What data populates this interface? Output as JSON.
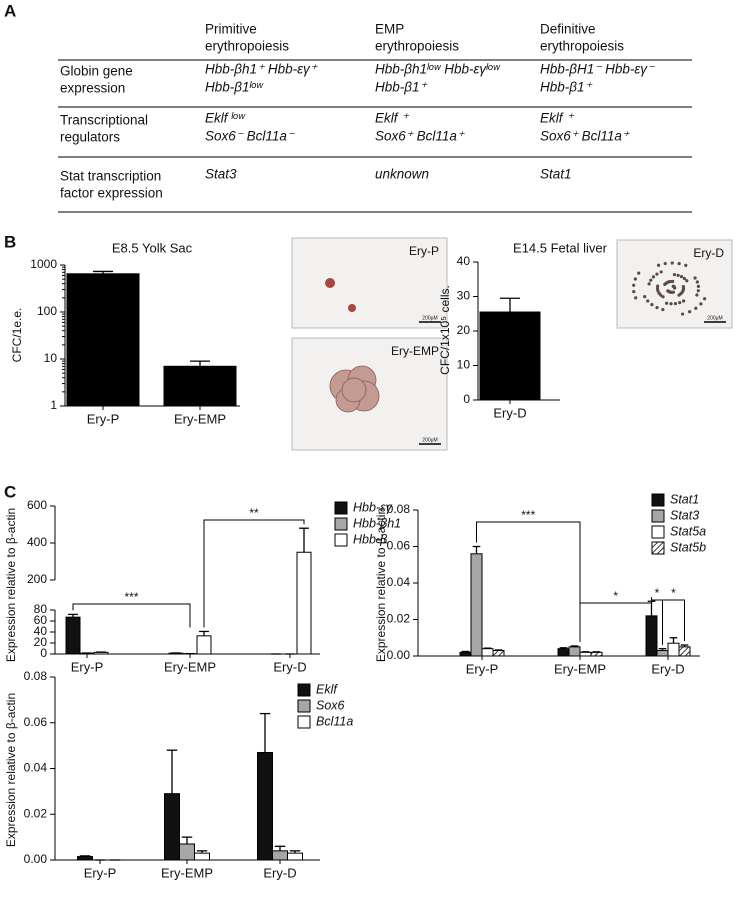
{
  "panel_labels": [
    "A",
    "B",
    "C"
  ],
  "table": {
    "header": [
      [
        "Primitive",
        "erythropoiesis"
      ],
      [
        "EMP",
        "erythropoiesis"
      ],
      [
        "Definitive",
        "erythropoiesis"
      ]
    ],
    "rows": [
      {
        "label": [
          "Globin gene",
          "expression"
        ],
        "cells": [
          [
            "Hbb-βh1⁺ Hbb-εγ⁺",
            "Hbb-β1ˡᵒʷ"
          ],
          [
            "Hbb-βh1ˡᵒʷ Hbb-εγˡᵒʷ",
            "Hbb-β1⁺"
          ],
          [
            "Hbb-βH1⁻ Hbb-εγ⁻",
            "Hbb-β1⁺"
          ]
        ]
      },
      {
        "label": [
          "Transcriptional",
          "regulators"
        ],
        "cells": [
          [
            "Eklf ˡᵒʷ",
            "Sox6⁻ Bcl11a⁻"
          ],
          [
            "Eklf ⁺",
            "Sox6⁺ Bcl11a⁺"
          ],
          [
            "Eklf ⁺",
            "Sox6⁺ Bcl11a⁺"
          ]
        ]
      },
      {
        "label": [
          "Stat transcription",
          "factor expression"
        ],
        "cells": [
          [
            "Stat3"
          ],
          [
            "unknown"
          ],
          [
            "Stat1"
          ]
        ]
      }
    ]
  },
  "images": [
    {
      "label": "Ery-P",
      "scale": "200μM"
    },
    {
      "label": "Ery-EMP",
      "scale": "200μM"
    },
    {
      "label": "Ery-D",
      "scale": "200μM"
    }
  ],
  "chart_data": [
    {
      "type": "bar",
      "title": "E8.5 Yolk Sac",
      "y_label": "CFC/1e.e.",
      "log_scale": true,
      "categories": [
        "Ery-P",
        "Ery-EMP"
      ],
      "values": [
        650,
        7
      ],
      "errors": [
        80,
        2
      ],
      "color": "#000000",
      "ylim": [
        1,
        1000
      ],
      "yticks": [
        1,
        10,
        100,
        1000
      ]
    },
    {
      "type": "bar",
      "title": "E14.5 Fetal liver",
      "y_label": "CFC/1x10⁵ cells.",
      "categories": [
        "Ery-D"
      ],
      "values": [
        25.5
      ],
      "errors": [
        4
      ],
      "color": "#000000",
      "ylim": [
        0,
        40
      ],
      "yticks": [
        0,
        10,
        20,
        30,
        40
      ]
    },
    {
      "type": "bar",
      "y_label": "Expression relative to β-actin",
      "categories": [
        "Ery-P",
        "Ery-EMP",
        "Ery-D"
      ],
      "series": [
        {
          "name": "Hbb-εγ",
          "color": "#111111",
          "values": [
            67,
            1.5,
            0
          ],
          "errors": [
            5,
            0.3,
            0
          ]
        },
        {
          "name": "Hbb-βh1",
          "color": "#a6a6a6",
          "values": [
            1.5,
            0.5,
            0
          ],
          "errors": [
            0.3,
            0.2,
            0
          ]
        },
        {
          "name": "Hbb-β",
          "color": "#ffffff",
          "values": [
            3,
            33,
            350
          ],
          "errors": [
            0.5,
            8,
            130
          ]
        }
      ],
      "ylim": [
        0,
        600
      ],
      "y_break": [
        80,
        200
      ],
      "yticks": [
        0,
        20,
        40,
        60,
        80,
        200,
        400,
        600
      ],
      "annotations": [
        {
          "text": "***",
          "from": [
            "Ery-P",
            "Hbb-εγ"
          ],
          "to": [
            "Ery-EMP",
            null
          ]
        },
        {
          "text": "**",
          "from": [
            "Ery-EMP",
            "Hbb-β"
          ],
          "to": [
            "Ery-D",
            "Hbb-β"
          ]
        }
      ]
    },
    {
      "type": "bar",
      "y_label": "Expression relative to β-actin",
      "categories": [
        "Ery-P",
        "Ery-EMP",
        "Ery-D"
      ],
      "series": [
        {
          "name": "Stat1",
          "color": "#111111",
          "values": [
            0.002,
            0.004,
            0.022
          ],
          "errors": [
            0.0005,
            0.0005,
            0.008
          ]
        },
        {
          "name": "Stat3",
          "color": "#a6a6a6",
          "values": [
            0.056,
            0.005,
            0.003
          ],
          "errors": [
            0.004,
            0.0005,
            0.001
          ]
        },
        {
          "name": "Stat5a",
          "color": "#ffffff",
          "values": [
            0.004,
            0.002,
            0.007
          ],
          "errors": [
            0.0003,
            0.0003,
            0.003
          ]
        },
        {
          "name": "Stat5b",
          "color": "#ffffff",
          "pattern": "hatch",
          "values": [
            0.003,
            0.002,
            0.005
          ],
          "errors": [
            0.0003,
            0.0003,
            0.001
          ]
        }
      ],
      "ylim": [
        0,
        0.08
      ],
      "yticks": [
        {
          "value": 0,
          "label": "0.00"
        },
        0.02,
        0.04,
        0.06,
        0.08
      ],
      "annotations": [
        {
          "text": "***",
          "from": [
            "Ery-P",
            "Stat3"
          ],
          "to": [
            "Ery-EMP",
            null
          ]
        },
        {
          "text": "*",
          "from": [
            "Ery-EMP",
            null
          ],
          "to": [
            "Ery-D",
            "Stat1"
          ]
        },
        {
          "text": "*",
          "from": [
            "Ery-D",
            "Stat1"
          ],
          "to": [
            "Ery-D",
            "Stat3"
          ]
        },
        {
          "text": "*",
          "from": [
            "Ery-D",
            "Stat3"
          ],
          "to": [
            "Ery-D",
            "Stat5b"
          ]
        }
      ]
    },
    {
      "type": "bar",
      "y_label": "Expression relative to β-actin",
      "categories": [
        "Ery-P",
        "Ery-EMP",
        "Ery-D"
      ],
      "series": [
        {
          "name": "Eklf",
          "color": "#111111",
          "values": [
            0.0015,
            0.029,
            0.047
          ],
          "errors": [
            0.0003,
            0.019,
            0.017
          ]
        },
        {
          "name": "Sox6",
          "color": "#a6a6a6",
          "values": [
            0,
            0.007,
            0.004
          ],
          "errors": [
            0,
            0.003,
            0.002
          ]
        },
        {
          "name": "Bcl11a",
          "color": "#ffffff",
          "values": [
            0,
            0.003,
            0.003
          ],
          "errors": [
            0,
            0.001,
            0.001
          ]
        }
      ],
      "ylim": [
        0,
        0.08
      ],
      "yticks": [
        {
          "value": 0,
          "label": "0.00"
        },
        0.02,
        0.04,
        0.06,
        0.08
      ]
    }
  ]
}
